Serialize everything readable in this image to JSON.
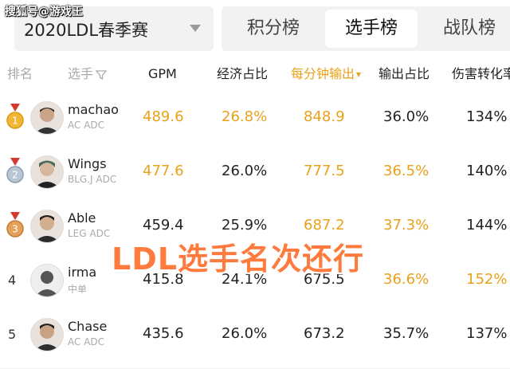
{
  "watermark": "搜狐号@游戏王",
  "season_select": {
    "value": "2020LDL春季赛"
  },
  "tabs": [
    {
      "label": "积分榜",
      "active": false
    },
    {
      "label": "选手榜",
      "active": true
    },
    {
      "label": "战队榜",
      "active": false
    }
  ],
  "columns": {
    "rank": "排名",
    "player": "选手",
    "gpm": "GPM",
    "gold_share": "经济占比",
    "dpm": "每分钟输出",
    "dmg_share": "输出占比",
    "dmg_conv": "伤害转化率"
  },
  "rows": [
    {
      "rank": "",
      "medal": "gold",
      "name": "machao",
      "team": "AC ADC",
      "gpm": "489.6",
      "gold_share": "26.8%",
      "dpm": "848.9",
      "dmg_share": "36.0%",
      "dmg_conv": "134%"
    },
    {
      "rank": "",
      "medal": "silver",
      "name": "Wings",
      "team": "BLG.J ADC",
      "gpm": "477.6",
      "gold_share": "26.0%",
      "dpm": "777.5",
      "dmg_share": "36.5%",
      "dmg_conv": "140%"
    },
    {
      "rank": "",
      "medal": "bronze",
      "name": "Able",
      "team": "LEG ADC",
      "gpm": "459.4",
      "gold_share": "25.9%",
      "dpm": "687.2",
      "dmg_share": "37.3%",
      "dmg_conv": "144%"
    },
    {
      "rank": "4",
      "medal": "",
      "name": "irma",
      "team": "中单",
      "gpm": "415.8",
      "gold_share": "24.1%",
      "dpm": "675.5",
      "dmg_share": "36.6%",
      "dmg_conv": "152%"
    },
    {
      "rank": "5",
      "medal": "",
      "name": "Chase",
      "team": "AC ADC",
      "gpm": "435.6",
      "gold_share": "26.0%",
      "dpm": "673.2",
      "dmg_share": "35.7%",
      "dmg_conv": "137%"
    }
  ],
  "overlay_text": "LDL选手名次还行",
  "colors": {
    "accent": "#e8a21a",
    "overlay": "#ff7a3d"
  }
}
